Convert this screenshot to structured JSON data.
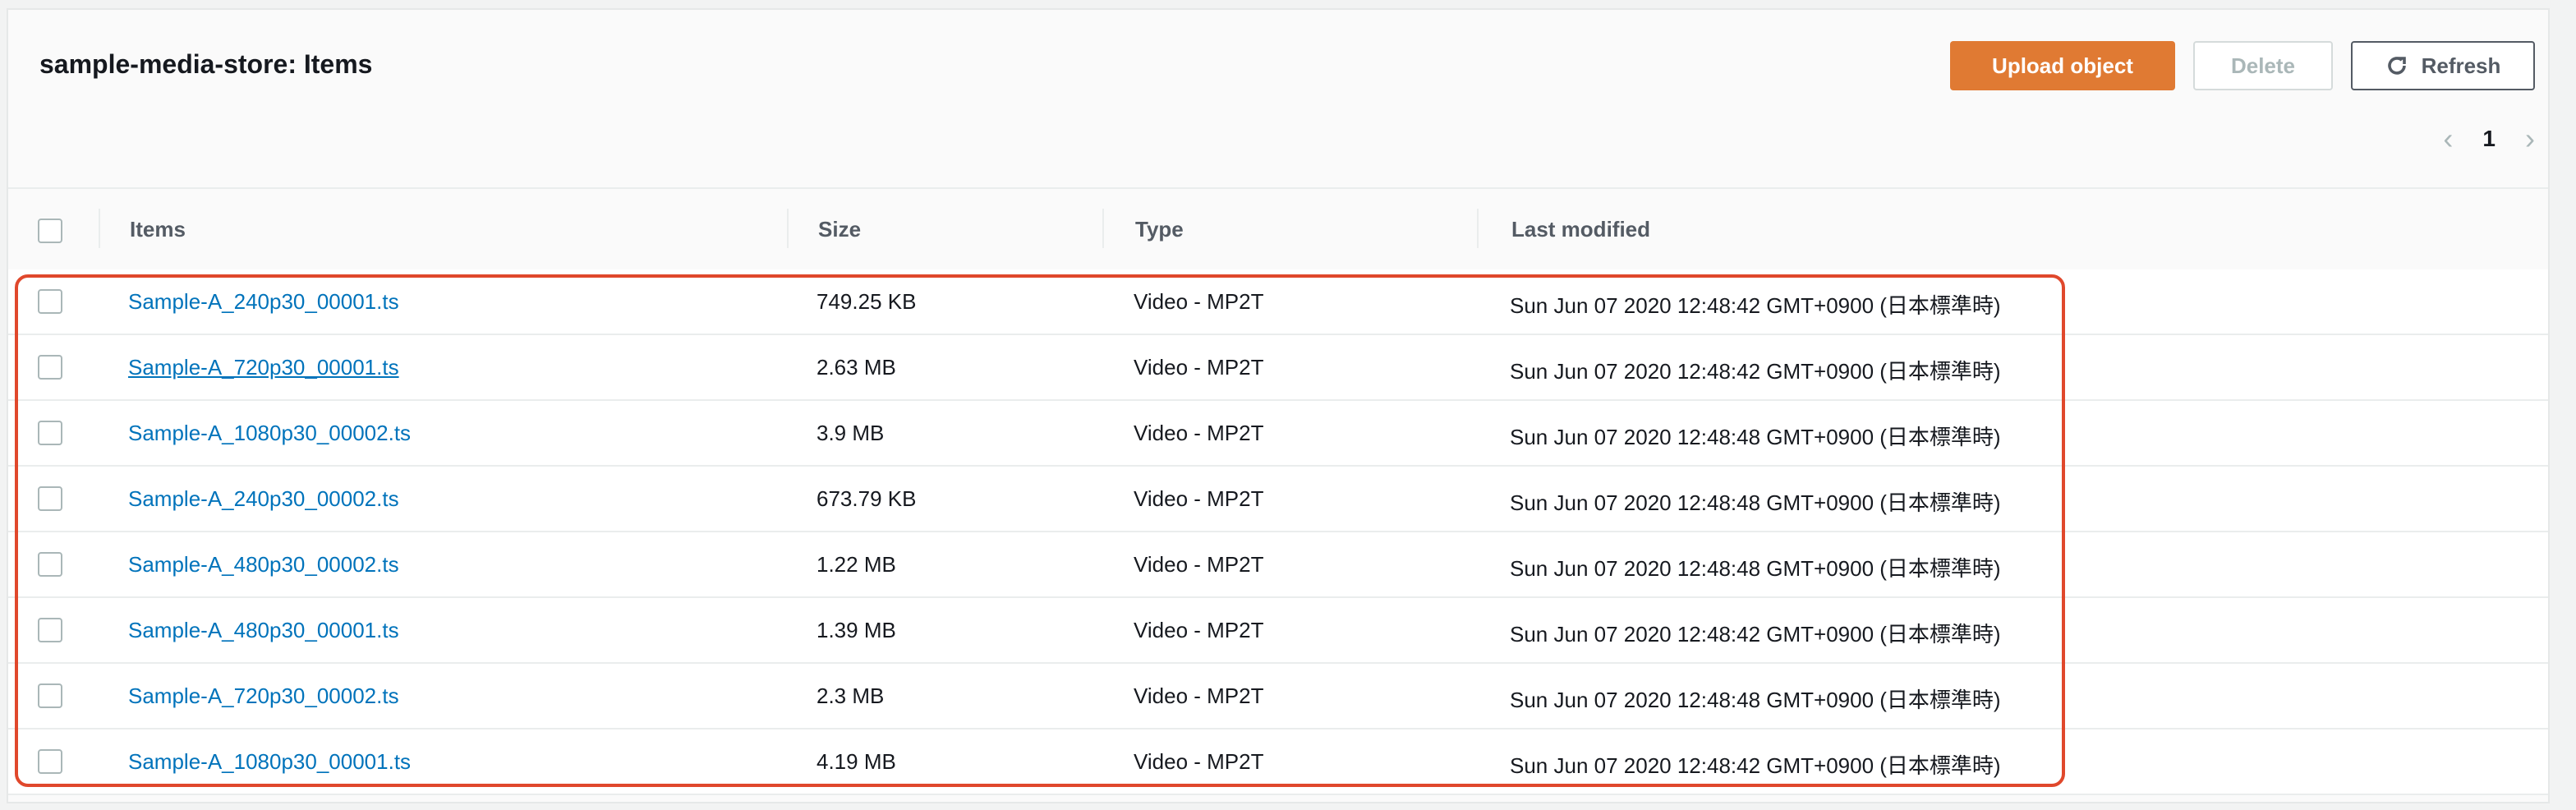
{
  "header": {
    "title": "sample-media-store: Items"
  },
  "toolbar": {
    "upload_label": "Upload object",
    "delete_label": "Delete",
    "refresh_label": "Refresh",
    "refresh_icon": "refresh-icon"
  },
  "pagination": {
    "current_page": "1",
    "prev_icon": "chevron-left-icon",
    "next_icon": "chevron-right-icon"
  },
  "table": {
    "columns": [
      "Items",
      "Size",
      "Type",
      "Last modified"
    ],
    "rows": [
      {
        "name": "Sample-A_240p30_00001.ts",
        "size": "749.25 KB",
        "type": "Video - MP2T",
        "modified": "Sun Jun 07 2020 12:48:42 GMT+0900 (日本標準時)"
      },
      {
        "name": "Sample-A_720p30_00001.ts",
        "size": "2.63 MB",
        "type": "Video - MP2T",
        "modified": "Sun Jun 07 2020 12:48:42 GMT+0900 (日本標準時)"
      },
      {
        "name": "Sample-A_1080p30_00002.ts",
        "size": "3.9 MB",
        "type": "Video - MP2T",
        "modified": "Sun Jun 07 2020 12:48:48 GMT+0900 (日本標準時)"
      },
      {
        "name": "Sample-A_240p30_00002.ts",
        "size": "673.79 KB",
        "type": "Video - MP2T",
        "modified": "Sun Jun 07 2020 12:48:48 GMT+0900 (日本標準時)"
      },
      {
        "name": "Sample-A_480p30_00002.ts",
        "size": "1.22 MB",
        "type": "Video - MP2T",
        "modified": "Sun Jun 07 2020 12:48:48 GMT+0900 (日本標準時)"
      },
      {
        "name": "Sample-A_480p30_00001.ts",
        "size": "1.39 MB",
        "type": "Video - MP2T",
        "modified": "Sun Jun 07 2020 12:48:42 GMT+0900 (日本標準時)"
      },
      {
        "name": "Sample-A_720p30_00002.ts",
        "size": "2.3 MB",
        "type": "Video - MP2T",
        "modified": "Sun Jun 07 2020 12:48:48 GMT+0900 (日本標準時)"
      },
      {
        "name": "Sample-A_1080p30_00001.ts",
        "size": "4.19 MB",
        "type": "Video - MP2T",
        "modified": "Sun Jun 07 2020 12:48:42 GMT+0900 (日本標準時)"
      }
    ]
  },
  "colors": {
    "accent": "#e07a33",
    "link": "#0073bb",
    "highlight": "#e0482c"
  }
}
